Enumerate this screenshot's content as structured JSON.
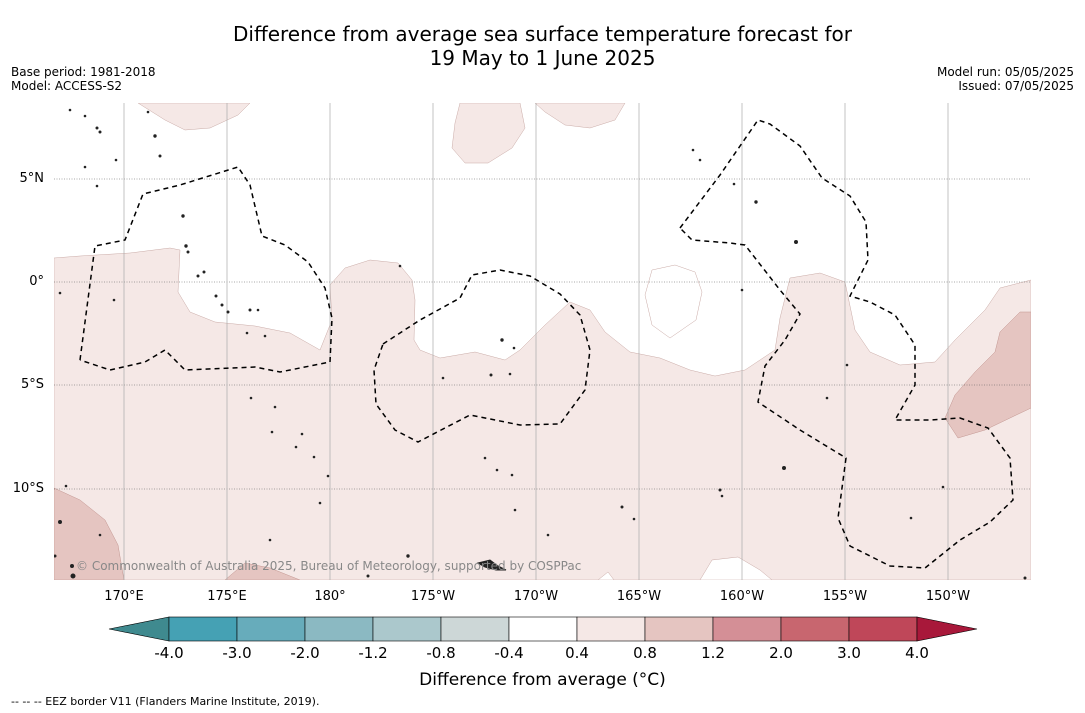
{
  "title_line1": "Difference from average sea surface temperature forecast for",
  "title_line2": "19 May to 1 June 2025",
  "base_period": "Base period: 1981-2018",
  "model": "Model: ACCESS-S2",
  "model_run": "Model run: 05/05/2025",
  "issued": "Issued: 07/05/2025",
  "lat_labels": [
    "5°N",
    "0°",
    "5°S",
    "10°S"
  ],
  "lon_labels": [
    "170°E",
    "175°E",
    "180°",
    "175°W",
    "170°W",
    "165°W",
    "160°W",
    "155°W",
    "150°W"
  ],
  "copyright": "© Commonwealth of Australia 2025, Bureau of Meteorology, supported by COSPPac",
  "colorbar": {
    "ticks": [
      "-4.0",
      "-3.0",
      "-2.0",
      "-1.2",
      "-0.8",
      "-0.4",
      "0.4",
      "0.8",
      "1.2",
      "2.0",
      "3.0",
      "4.0"
    ],
    "colors": [
      "#45a1b4",
      "#67acbb",
      "#8bb9c2",
      "#abc8cc",
      "#cdd7d7",
      "#ffffff",
      "#f5e8e6",
      "#e5c5c1",
      "#d48f96",
      "#c8666f",
      "#bf4759"
    ],
    "under_color": "#3f8a8f",
    "over_color": "#a8183a",
    "label": "Difference from average (°C)"
  },
  "legend_note": "--  --  -- EEZ border V11 (Flanders Marine Institute, 2019)."
}
